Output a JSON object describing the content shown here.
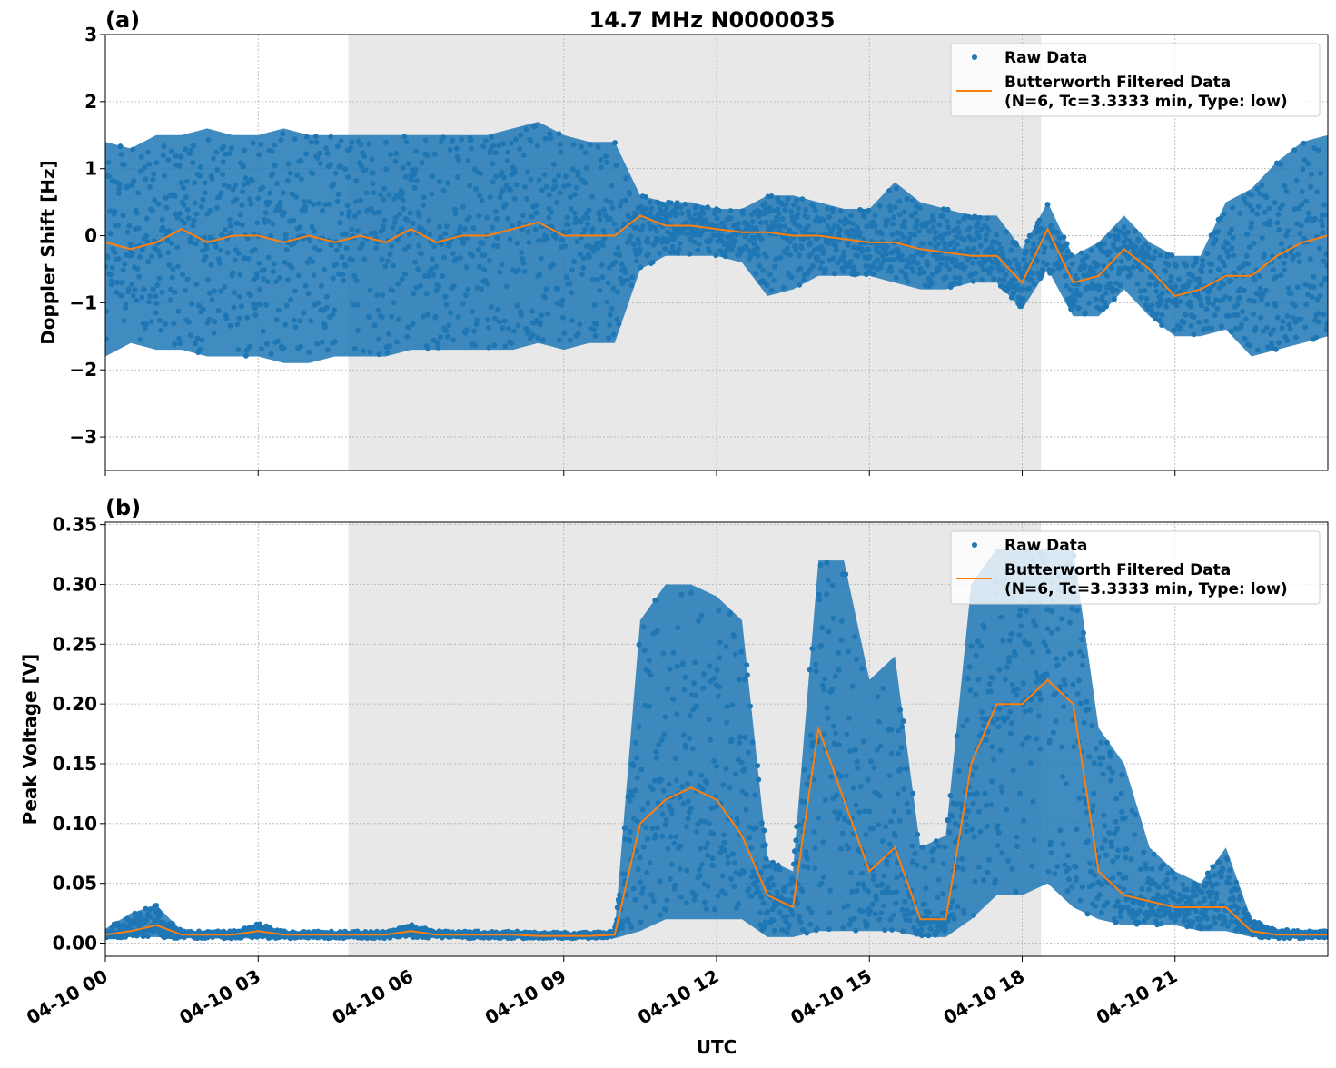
{
  "title": "14.7 MHz N0000035",
  "colors": {
    "raw": "#1f77b4",
    "filtered": "#ff7f0e",
    "shade": "#e8e8e8"
  },
  "chart_data": [
    {
      "type": "scatter",
      "panel_label": "(a)",
      "ylabel": "Doppler Shift [Hz]",
      "xlabel": "",
      "xlim_hours": [
        0,
        24
      ],
      "ylim": [
        -3.5,
        3
      ],
      "yticks": [
        3,
        2,
        1,
        0,
        -1,
        -2,
        -3
      ],
      "ytick_labels": [
        "3",
        "2",
        "1",
        "0",
        "−1",
        "−2",
        "−3"
      ],
      "shaded_interval_hours": [
        4.77,
        18.37
      ],
      "grid": true,
      "legend": {
        "position": "top-right",
        "entries": [
          "Raw Data",
          "Butterworth Filtered Data",
          "(N=6, Tc=3.3333 min, Type: low)"
        ]
      },
      "x_hours": [
        0,
        0.5,
        1,
        1.5,
        2,
        2.5,
        3,
        3.5,
        4,
        4.5,
        5,
        5.5,
        6,
        6.5,
        7,
        7.5,
        8,
        8.5,
        9,
        9.5,
        10,
        10.5,
        11,
        11.5,
        12,
        12.5,
        13,
        13.5,
        14,
        14.5,
        15,
        15.5,
        16,
        16.5,
        17,
        17.5,
        18,
        18.5,
        19,
        19.5,
        20,
        20.5,
        21,
        21.5,
        22,
        22.5,
        23,
        23.5,
        24
      ],
      "series": [
        {
          "name": "Butterworth Filtered Data",
          "values": [
            -0.1,
            -0.2,
            -0.1,
            0.1,
            -0.1,
            0.0,
            0.0,
            -0.1,
            0.0,
            -0.1,
            0.0,
            -0.1,
            0.1,
            -0.1,
            0.0,
            0.0,
            0.1,
            0.2,
            0.0,
            0.0,
            0.0,
            0.3,
            0.15,
            0.15,
            0.1,
            0.05,
            0.05,
            0.0,
            0.0,
            -0.05,
            -0.1,
            -0.1,
            -0.2,
            -0.25,
            -0.3,
            -0.3,
            -0.7,
            0.1,
            -0.7,
            -0.6,
            -0.2,
            -0.5,
            -0.9,
            -0.8,
            -0.6,
            -0.6,
            -0.3,
            -0.1,
            0.0
          ]
        },
        {
          "name": "Raw Data (lower envelope)",
          "values": [
            -1.8,
            -1.6,
            -1.7,
            -1.7,
            -1.8,
            -1.8,
            -1.8,
            -1.9,
            -1.9,
            -1.8,
            -1.8,
            -1.8,
            -1.7,
            -1.7,
            -1.7,
            -1.7,
            -1.7,
            -1.6,
            -1.7,
            -1.6,
            -1.6,
            -0.5,
            -0.3,
            -0.3,
            -0.3,
            -0.4,
            -0.9,
            -0.8,
            -0.6,
            -0.6,
            -0.6,
            -0.7,
            -0.8,
            -0.8,
            -0.7,
            -0.7,
            -1.1,
            -0.5,
            -1.2,
            -1.2,
            -0.8,
            -1.2,
            -1.5,
            -1.5,
            -1.4,
            -1.8,
            -1.7,
            -1.6,
            -1.5
          ]
        },
        {
          "name": "Raw Data (upper envelope)",
          "values": [
            1.4,
            1.3,
            1.5,
            1.5,
            1.6,
            1.5,
            1.5,
            1.6,
            1.5,
            1.5,
            1.5,
            1.5,
            1.5,
            1.5,
            1.5,
            1.5,
            1.6,
            1.7,
            1.5,
            1.4,
            1.4,
            0.6,
            0.5,
            0.5,
            0.4,
            0.4,
            0.6,
            0.6,
            0.5,
            0.4,
            0.4,
            0.8,
            0.5,
            0.4,
            0.3,
            0.3,
            -0.2,
            0.5,
            -0.3,
            -0.1,
            0.3,
            -0.1,
            -0.3,
            -0.3,
            0.5,
            0.7,
            1.1,
            1.4,
            1.5
          ]
        }
      ]
    },
    {
      "type": "scatter",
      "panel_label": "(b)",
      "ylabel": "Peak Voltage [V]",
      "xlabel": "UTC",
      "xlim_hours": [
        0,
        24
      ],
      "ylim": [
        -0.011,
        0.352
      ],
      "yticks": [
        0.35,
        0.3,
        0.25,
        0.2,
        0.15,
        0.1,
        0.05,
        0.0
      ],
      "ytick_labels": [
        "0.35",
        "0.30",
        "0.25",
        "0.20",
        "0.15",
        "0.10",
        "0.05",
        "0.00"
      ],
      "xticks_hours": [
        0,
        3,
        6,
        9,
        12,
        15,
        18,
        21
      ],
      "xtick_labels": [
        "04-10 00",
        "04-10 03",
        "04-10 06",
        "04-10 09",
        "04-10 12",
        "04-10 15",
        "04-10 18",
        "04-10 21"
      ],
      "shaded_interval_hours": [
        4.77,
        18.37
      ],
      "grid": true,
      "legend": {
        "position": "top-right",
        "entries": [
          "Raw Data",
          "Butterworth Filtered Data",
          "(N=6, Tc=3.3333 min, Type: low)"
        ]
      },
      "x_hours": [
        0,
        0.5,
        1,
        1.5,
        2,
        2.5,
        3,
        3.5,
        4,
        4.5,
        5,
        5.5,
        6,
        6.5,
        7,
        7.5,
        8,
        8.5,
        9,
        9.5,
        10,
        10.5,
        11,
        11.5,
        12,
        12.5,
        13,
        13.5,
        14,
        14.5,
        15,
        15.5,
        16,
        16.5,
        17,
        17.5,
        18,
        18.5,
        19,
        19.5,
        20,
        20.5,
        21,
        21.5,
        22,
        22.5,
        23,
        23.5,
        24
      ],
      "series": [
        {
          "name": "Butterworth Filtered Data",
          "values": [
            0.007,
            0.01,
            0.015,
            0.007,
            0.007,
            0.007,
            0.01,
            0.007,
            0.007,
            0.007,
            0.007,
            0.007,
            0.01,
            0.007,
            0.007,
            0.007,
            0.007,
            0.006,
            0.006,
            0.006,
            0.007,
            0.1,
            0.12,
            0.13,
            0.12,
            0.09,
            0.04,
            0.03,
            0.18,
            0.12,
            0.06,
            0.08,
            0.02,
            0.02,
            0.15,
            0.2,
            0.2,
            0.22,
            0.2,
            0.06,
            0.04,
            0.035,
            0.03,
            0.03,
            0.03,
            0.01,
            0.007,
            0.007,
            0.007
          ]
        },
        {
          "name": "Raw Data (lower envelope)",
          "values": [
            0.004,
            0.005,
            0.005,
            0.004,
            0.004,
            0.004,
            0.004,
            0.004,
            0.004,
            0.004,
            0.004,
            0.004,
            0.005,
            0.004,
            0.004,
            0.004,
            0.004,
            0.004,
            0.004,
            0.004,
            0.004,
            0.01,
            0.02,
            0.02,
            0.02,
            0.02,
            0.005,
            0.005,
            0.01,
            0.01,
            0.01,
            0.01,
            0.005,
            0.005,
            0.02,
            0.04,
            0.04,
            0.05,
            0.03,
            0.02,
            0.015,
            0.015,
            0.015,
            0.01,
            0.01,
            0.005,
            0.004,
            0.004,
            0.004
          ]
        },
        {
          "name": "Raw Data (upper envelope)",
          "values": [
            0.012,
            0.025,
            0.032,
            0.01,
            0.01,
            0.01,
            0.017,
            0.01,
            0.01,
            0.01,
            0.01,
            0.01,
            0.016,
            0.01,
            0.01,
            0.01,
            0.01,
            0.009,
            0.009,
            0.009,
            0.01,
            0.27,
            0.3,
            0.3,
            0.29,
            0.27,
            0.07,
            0.06,
            0.32,
            0.32,
            0.22,
            0.24,
            0.08,
            0.09,
            0.3,
            0.33,
            0.33,
            0.33,
            0.33,
            0.18,
            0.15,
            0.08,
            0.06,
            0.05,
            0.08,
            0.02,
            0.012,
            0.01,
            0.01
          ]
        }
      ]
    }
  ]
}
